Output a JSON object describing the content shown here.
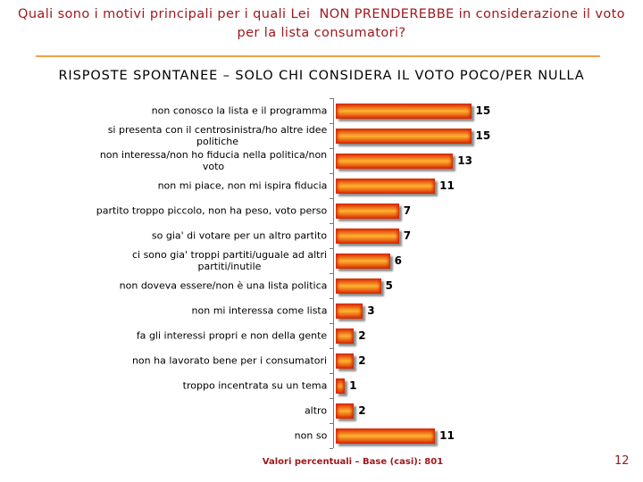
{
  "chart_data": {
    "type": "bar",
    "orientation": "horizontal",
    "title": "Quali sono i motivi principali per i quali Lei  NON PRENDEREBBE in considerazione il voto per la lista consumatori?",
    "subtitle": "RISPOSTE SPONTANEE – SOLO CHI CONSIDERA IL VOTO POCO/PER NULLA",
    "categories": [
      "non conosco la lista e il programma",
      "si presenta con il centrosinistra/ho altre idee politiche",
      "non interessa/non ho fiducia nella politica/non voto",
      "non mi piace, non mi ispira fiducia",
      "partito troppo piccolo, non ha peso, voto perso",
      "so gia' di votare per un altro partito",
      "ci sono gia' troppi partiti/uguale ad altri partiti/inutile",
      "non doveva essere/non è una lista politica",
      "non mi interessa come lista",
      "fa gli interessi propri e non della gente",
      "non ha lavorato bene per i consumatori",
      "troppo incentrata su un tema",
      "altro",
      "non so"
    ],
    "values": [
      15,
      15,
      13,
      11,
      7,
      7,
      6,
      5,
      3,
      2,
      2,
      1,
      2,
      11
    ],
    "data_labels": true,
    "grid": false,
    "note": "Valori percentuali – Base (casi): 801"
  },
  "page_number": "12",
  "colors": {
    "title": "#a0181c",
    "rule": "#f0a24a",
    "bar_edge": "#d82600",
    "bar_center": "#ffb430",
    "note": "#a0181c"
  }
}
